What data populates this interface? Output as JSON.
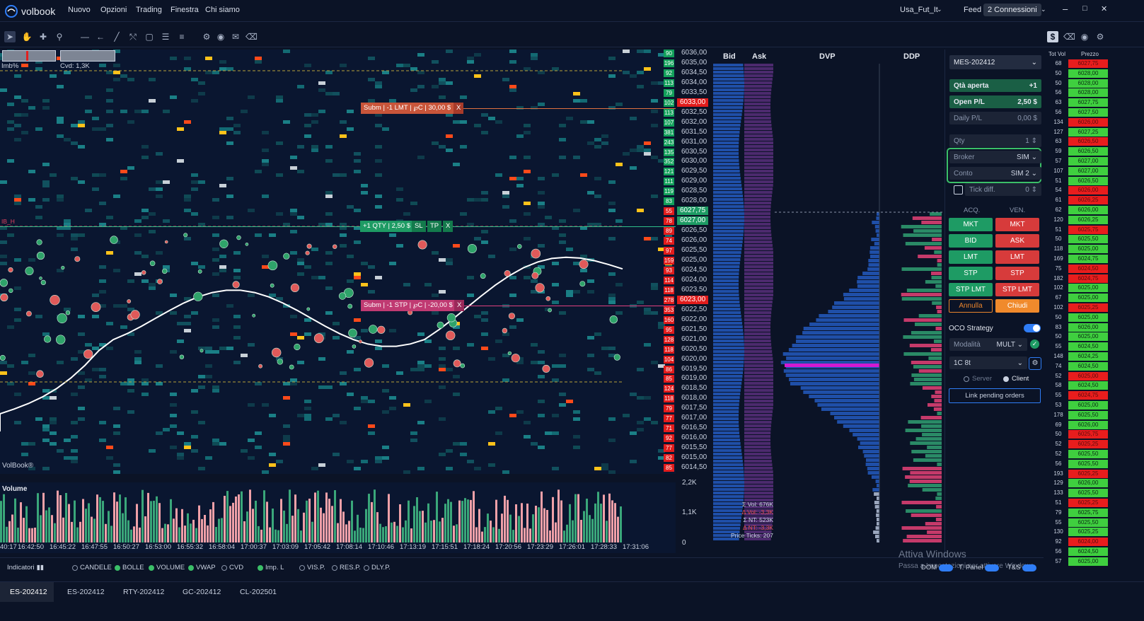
{
  "app": {
    "logo_text": "volbook"
  },
  "menu": [
    "Nuovo",
    "Opzioni",
    "Trading",
    "Finestra",
    "Chi siamo"
  ],
  "top_right": {
    "workspace": "Usa_Fut_It",
    "feed_label": "Feed",
    "connections": "2 Connessioni"
  },
  "chart": {
    "imb_label": "Imb%",
    "cvd_label": "Cvd: 1,3K",
    "ibh_label": "IB_H",
    "watermark": "VolBook®",
    "orders": [
      {
        "text": "Subm | -1 LMT | ℘C | 30,00 $",
        "close": "X"
      },
      {
        "text": "+1 QTY | 2,50 $",
        "sl": "SL",
        "tp": "TP",
        "close": "X"
      },
      {
        "text": "Subm | -1 STP | ℘C | -20,00 $",
        "close": "X"
      }
    ]
  },
  "price_axis": {
    "ticks": [
      "6036,00",
      "6035,00",
      "6034,50",
      "6034,00",
      "6033,50",
      "6033,00",
      "6032,50",
      "6032,00",
      "6031,50",
      "6031,00",
      "6030,50",
      "6030,00",
      "6029,50",
      "6029,00",
      "6028,50",
      "6028,00",
      "6027,75",
      "6027,00",
      "6026,50",
      "6026,00",
      "6025,50",
      "6025,00",
      "6024,50",
      "6024,00",
      "6023,50",
      "6023,00",
      "6022,50",
      "6022,00",
      "6021,50",
      "6021,00",
      "6020,50",
      "6020,00",
      "6019,50",
      "6019,00",
      "6018,50",
      "6018,00",
      "6017,50",
      "6017,00",
      "6016,50",
      "6016,00",
      "6015,50",
      "6015,00",
      "6014,50"
    ],
    "vol_cells": [
      "90",
      "196",
      "92",
      "113",
      "79",
      "102",
      "113",
      "107",
      "381",
      "243",
      "135",
      "352",
      "121",
      "111",
      "119",
      "83",
      "55",
      "78",
      "89",
      "74",
      "97",
      "159",
      "93",
      "114",
      "118",
      "278",
      "353",
      "160",
      "95",
      "128",
      "118",
      "104",
      "86",
      "85",
      "124",
      "118",
      "79",
      "77",
      "71",
      "92",
      "77",
      "82",
      "85"
    ],
    "highlight_prices": [
      {
        "price": "6033,00"
      },
      {
        "price": "6027,75"
      },
      {
        "price": "6027,00"
      },
      {
        "price": "6023,00"
      }
    ]
  },
  "volume_panel": {
    "title": "Volume",
    "ticks": [
      "2,2K",
      "1,1K",
      "0"
    ]
  },
  "time_axis": [
    "40:17",
    "16:42:50",
    "16:45:22",
    "16:47:55",
    "16:50:27",
    "16:53:00",
    "16:55:32",
    "16:58:04",
    "17:00:37",
    "17:03:09",
    "17:05:42",
    "17:08:14",
    "17:10:46",
    "17:13:19",
    "17:15:51",
    "17:18:24",
    "17:20:56",
    "17:23:29",
    "17:26:01",
    "17:28:33",
    "17:31:06"
  ],
  "bidask": {
    "bid_header": "Bid",
    "ask_header": "Ask",
    "stats": [
      "Σ Vol: 676K",
      "Δ Vol: -3,3K",
      "Σ NT: 523K",
      "Δ NT: -3,3K",
      "Price Ticks: 207"
    ]
  },
  "dvp": {
    "dvp_header": "DVP",
    "ddp_header": "DDP"
  },
  "side_panel": {
    "symbol": "MES-202412",
    "open_qty_label": "Qtà aperta",
    "open_qty_value": "+1",
    "open_pl_label": "Open P/L",
    "open_pl_value": "2,50 $",
    "daily_pl_label": "Daily P/L",
    "daily_pl_value": "0,00 $",
    "qty_label": "Qty",
    "qty_value": "1",
    "broker_label": "Broker",
    "broker_value": "SIM",
    "account_label": "Conto",
    "account_value": "SIM 2",
    "tick_diff_label": "Tick diff.",
    "tick_diff_value": "0",
    "buy_header": "ACQ.",
    "sell_header": "VEN.",
    "buy_buttons": [
      "MKT",
      "BID",
      "LMT",
      "STP",
      "STP LMT"
    ],
    "sell_buttons": [
      "MKT",
      "ASK",
      "LMT",
      "STP",
      "STP LMT"
    ],
    "cancel_label": "Annulla",
    "close_label": "Chiudi",
    "oco_label": "OCO Strategy",
    "mode_label": "Modalità",
    "mode_value": "MULT",
    "template_value": "1C 8t",
    "server_label": "Server",
    "client_label": "Client",
    "link_label": "Link pending orders"
  },
  "tape": {
    "header_vol": "Tot Vol",
    "header_price": "Prezzo",
    "rows": [
      {
        "vol": "68",
        "price": "6027,75",
        "side": "sell"
      },
      {
        "vol": "50",
        "price": "6028,00",
        "side": "buy"
      },
      {
        "vol": "50",
        "price": "6028,00",
        "side": "buy"
      },
      {
        "vol": "56",
        "price": "6028,00",
        "side": "buy"
      },
      {
        "vol": "63",
        "price": "6027,75",
        "side": "buy"
      },
      {
        "vol": "56",
        "price": "6027,50",
        "side": "buy"
      },
      {
        "vol": "134",
        "price": "6026,00",
        "side": "sell"
      },
      {
        "vol": "127",
        "price": "6027,25",
        "side": "buy"
      },
      {
        "vol": "63",
        "price": "6026,50",
        "side": "sell"
      },
      {
        "vol": "59",
        "price": "6026,50",
        "side": "buy"
      },
      {
        "vol": "57",
        "price": "6027,00",
        "side": "buy"
      },
      {
        "vol": "107",
        "price": "6027,00",
        "side": "buy"
      },
      {
        "vol": "51",
        "price": "6026,50",
        "side": "buy"
      },
      {
        "vol": "54",
        "price": "6026,00",
        "side": "sell"
      },
      {
        "vol": "61",
        "price": "6026,25",
        "side": "sell"
      },
      {
        "vol": "62",
        "price": "6026,00",
        "side": "buy"
      },
      {
        "vol": "120",
        "price": "6026,25",
        "side": "buy"
      },
      {
        "vol": "51",
        "price": "6025,75",
        "side": "sell"
      },
      {
        "vol": "50",
        "price": "6025,50",
        "side": "buy"
      },
      {
        "vol": "118",
        "price": "6025,00",
        "side": "buy"
      },
      {
        "vol": "169",
        "price": "6024,75",
        "side": "buy"
      },
      {
        "vol": "75",
        "price": "6024,50",
        "side": "sell"
      },
      {
        "vol": "182",
        "price": "6024,75",
        "side": "sell"
      },
      {
        "vol": "102",
        "price": "6025,00",
        "side": "buy"
      },
      {
        "vol": "67",
        "price": "6025,00",
        "side": "buy"
      },
      {
        "vol": "102",
        "price": "6025,25",
        "side": "sell"
      },
      {
        "vol": "50",
        "price": "6025,00",
        "side": "buy"
      },
      {
        "vol": "83",
        "price": "6026,00",
        "side": "buy"
      },
      {
        "vol": "50",
        "price": "6025,00",
        "side": "buy"
      },
      {
        "vol": "55",
        "price": "6024,50",
        "side": "buy"
      },
      {
        "vol": "148",
        "price": "6024,25",
        "side": "buy"
      },
      {
        "vol": "74",
        "price": "6024,50",
        "side": "buy"
      },
      {
        "vol": "52",
        "price": "6025,00",
        "side": "sell"
      },
      {
        "vol": "58",
        "price": "6024,50",
        "side": "buy"
      },
      {
        "vol": "55",
        "price": "6024,75",
        "side": "sell"
      },
      {
        "vol": "53",
        "price": "6025,00",
        "side": "buy"
      },
      {
        "vol": "178",
        "price": "6025,50",
        "side": "buy"
      },
      {
        "vol": "69",
        "price": "6026,00",
        "side": "buy"
      },
      {
        "vol": "50",
        "price": "6025,75",
        "side": "sell"
      },
      {
        "vol": "52",
        "price": "6025,25",
        "side": "sell"
      },
      {
        "vol": "52",
        "price": "6025,50",
        "side": "buy"
      },
      {
        "vol": "56",
        "price": "6025,50",
        "side": "buy"
      },
      {
        "vol": "193",
        "price": "6025,25",
        "side": "sell"
      },
      {
        "vol": "129",
        "price": "6026,00",
        "side": "buy"
      },
      {
        "vol": "133",
        "price": "6025,50",
        "side": "buy"
      },
      {
        "vol": "51",
        "price": "6025,25",
        "side": "sell"
      },
      {
        "vol": "79",
        "price": "6025,75",
        "side": "buy"
      },
      {
        "vol": "55",
        "price": "6025,50",
        "side": "buy"
      },
      {
        "vol": "130",
        "price": "6025,25",
        "side": "buy"
      },
      {
        "vol": "92",
        "price": "6024,00",
        "side": "sell"
      },
      {
        "vol": "56",
        "price": "6024,50",
        "side": "buy"
      },
      {
        "vol": "57",
        "price": "6025,00",
        "side": "buy"
      }
    ]
  },
  "indicators": {
    "label": "Indicatori",
    "items": [
      {
        "label": "CANDELE",
        "on": false
      },
      {
        "label": "BOLLE",
        "on": true
      },
      {
        "label": "VOLUME",
        "on": true
      },
      {
        "label": "VWAP",
        "on": true
      },
      {
        "label": "CVD",
        "on": false
      },
      {
        "label": "Imp. L",
        "on": true
      },
      {
        "label": "VIS.P.",
        "on": false
      },
      {
        "label": "RES.P.",
        "on": false
      },
      {
        "label": "DLY.P.",
        "on": false
      }
    ],
    "toggles": [
      "DOM",
      "T. Panel",
      "T&S"
    ]
  },
  "windows_watermark": {
    "line1": "Attiva Windows",
    "line2": "Passa a Impostazioni per attivare Windows."
  },
  "tabs": [
    "ES-202412",
    "ES-202412",
    "RTY-202412",
    "GC-202412",
    "CL-202501"
  ],
  "colors": {
    "buy": "#1e9b64",
    "sell": "#d73b3b",
    "accent": "#2f7df6",
    "bg": "#0b1326"
  }
}
